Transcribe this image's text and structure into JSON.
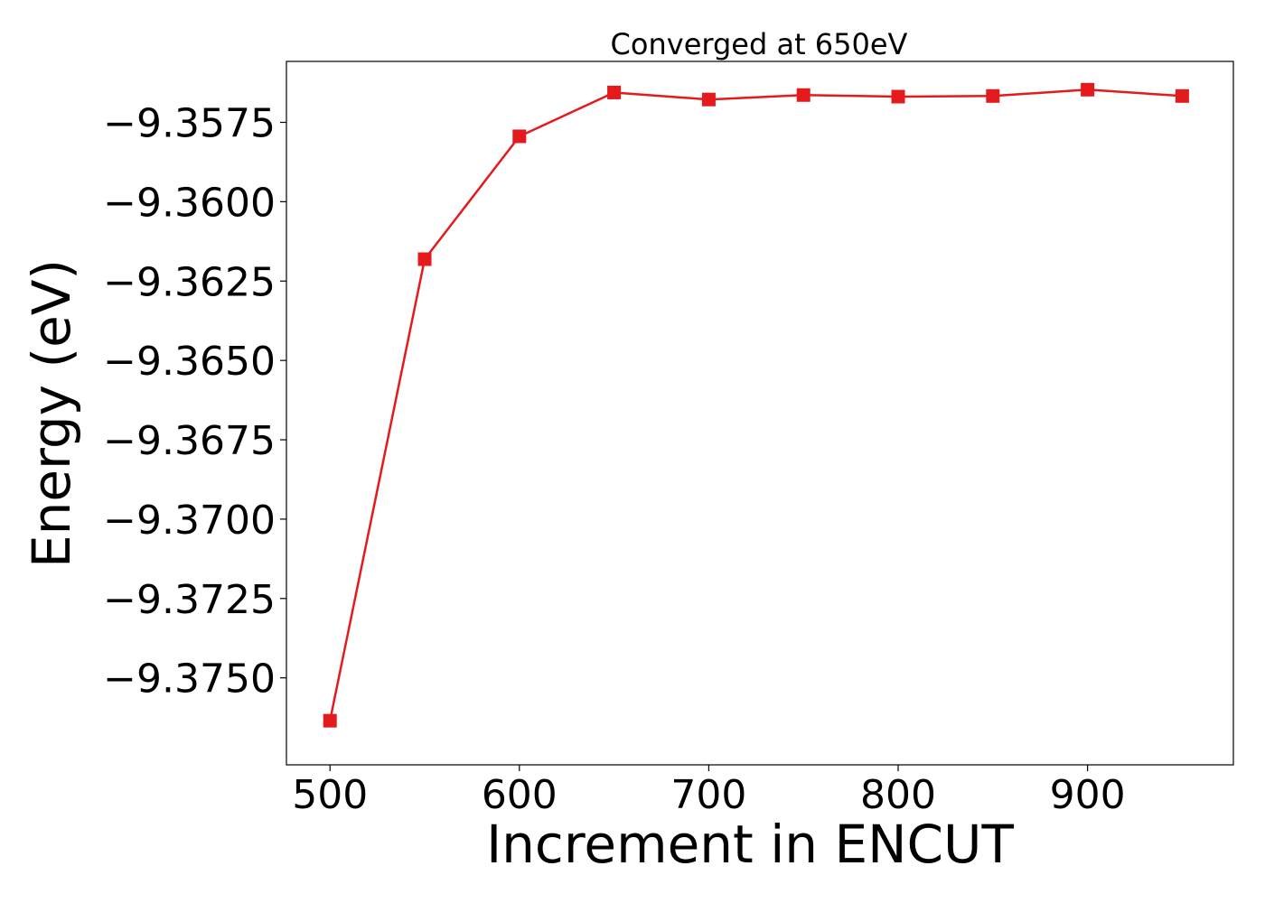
{
  "chart_data": {
    "type": "line",
    "title": "Converged at 650eV",
    "xlabel": "Increment in ENCUT",
    "ylabel": "Energy (eV)",
    "xlim": [
      477,
      977
    ],
    "ylim": [
      -9.37774,
      -9.35558
    ],
    "xticks": [
      500,
      600,
      700,
      800,
      900
    ],
    "xtick_labels": [
      "500",
      "600",
      "700",
      "800",
      "900"
    ],
    "yticks": [
      -9.3575,
      -9.36,
      -9.3625,
      -9.365,
      -9.3675,
      -9.37,
      -9.3725,
      -9.375
    ],
    "ytick_labels": [
      "−9.3575",
      "−9.3600",
      "−9.3625",
      "−9.3650",
      "−9.3675",
      "−9.3700",
      "−9.3725",
      "−9.3750"
    ],
    "grid": false,
    "series": [
      {
        "color": "#e41a1c",
        "marker": "square",
        "x": [
          500,
          550,
          600,
          650,
          700,
          750,
          800,
          850,
          900,
          950
        ],
        "values": [
          -9.37635,
          -9.36181,
          -9.35794,
          -9.35656,
          -9.35678,
          -9.35664,
          -9.35669,
          -9.35667,
          -9.35647,
          -9.35667
        ]
      }
    ]
  }
}
